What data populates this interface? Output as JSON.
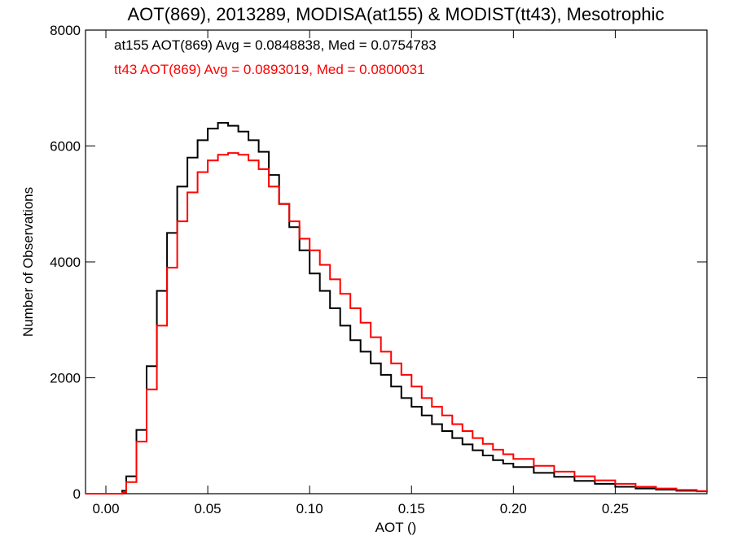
{
  "chart_data": {
    "type": "line",
    "title": "AOT(869), 2013289, MODISA(at155) & MODIST(tt43), Mesotrophic",
    "xlabel": "AOT ()",
    "ylabel": "Number of Observations",
    "xlim": [
      -0.01,
      0.295
    ],
    "ylim": [
      0,
      8000
    ],
    "x_ticks": [
      0.0,
      0.05,
      0.1,
      0.15,
      0.2,
      0.25
    ],
    "x_tick_labels": [
      "0.00",
      "0.05",
      "0.10",
      "0.15",
      "0.20",
      "0.25"
    ],
    "y_ticks": [
      0,
      2000,
      4000,
      6000,
      8000
    ],
    "y_tick_labels": [
      "0",
      "2000",
      "4000",
      "6000",
      "8000"
    ],
    "grid": false,
    "step": true,
    "annotations": [
      {
        "text": "at155 AOT(869) Avg = 0.0848838, Med = 0.0754783",
        "color": "#000000"
      },
      {
        "text": "tt43 AOT(869) Avg = 0.0893019, Med = 0.0800031",
        "color": "#ff0000"
      }
    ],
    "series": [
      {
        "color": "#000000",
        "x": [
          -0.01,
          0.005,
          0.008,
          0.01,
          0.015,
          0.02,
          0.025,
          0.03,
          0.035,
          0.04,
          0.045,
          0.05,
          0.055,
          0.06,
          0.065,
          0.07,
          0.075,
          0.08,
          0.085,
          0.09,
          0.095,
          0.1,
          0.105,
          0.11,
          0.115,
          0.12,
          0.125,
          0.13,
          0.135,
          0.14,
          0.145,
          0.15,
          0.155,
          0.16,
          0.165,
          0.17,
          0.175,
          0.18,
          0.185,
          0.19,
          0.195,
          0.2,
          0.21,
          0.22,
          0.23,
          0.24,
          0.25,
          0.26,
          0.27,
          0.28,
          0.29,
          0.295
        ],
        "y": [
          0,
          0,
          50,
          300,
          1100,
          2200,
          3500,
          4500,
          5300,
          5800,
          6100,
          6300,
          6400,
          6350,
          6250,
          6100,
          5900,
          5500,
          5000,
          4600,
          4200,
          3800,
          3500,
          3200,
          2900,
          2650,
          2450,
          2250,
          2050,
          1850,
          1650,
          1500,
          1350,
          1200,
          1080,
          960,
          850,
          750,
          660,
          580,
          520,
          460,
          360,
          290,
          220,
          170,
          120,
          90,
          70,
          50,
          40,
          30
        ]
      },
      {
        "color": "#ff0000",
        "x": [
          -0.01,
          0.005,
          0.008,
          0.01,
          0.015,
          0.02,
          0.025,
          0.03,
          0.035,
          0.04,
          0.045,
          0.05,
          0.055,
          0.06,
          0.065,
          0.07,
          0.075,
          0.08,
          0.085,
          0.09,
          0.095,
          0.1,
          0.105,
          0.11,
          0.115,
          0.12,
          0.125,
          0.13,
          0.135,
          0.14,
          0.145,
          0.15,
          0.155,
          0.16,
          0.165,
          0.17,
          0.175,
          0.18,
          0.185,
          0.19,
          0.195,
          0.2,
          0.21,
          0.22,
          0.23,
          0.24,
          0.25,
          0.26,
          0.27,
          0.28,
          0.29,
          0.295
        ],
        "y": [
          0,
          0,
          20,
          200,
          900,
          1800,
          2900,
          3900,
          4700,
          5200,
          5550,
          5750,
          5850,
          5880,
          5850,
          5750,
          5600,
          5300,
          5000,
          4700,
          4400,
          4200,
          3950,
          3700,
          3450,
          3200,
          2950,
          2700,
          2450,
          2250,
          2050,
          1850,
          1650,
          1500,
          1350,
          1200,
          1080,
          960,
          860,
          760,
          680,
          600,
          480,
          380,
          300,
          230,
          170,
          120,
          90,
          65,
          45,
          30
        ]
      }
    ]
  }
}
